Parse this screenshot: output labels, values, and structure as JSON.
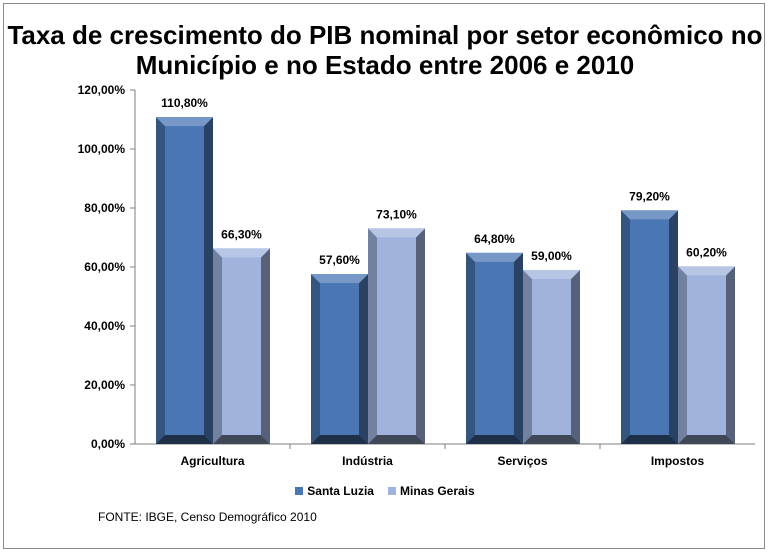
{
  "chart_data": {
    "type": "bar",
    "title": "Taxa de crescimento do PIB nominal por setor econômico no Município e no Estado entre 2006 e 2010",
    "categories": [
      "Agricultura",
      "Indústria",
      "Serviços",
      "Impostos"
    ],
    "series": [
      {
        "name": "Santa Luzia",
        "values": [
          110.8,
          57.6,
          64.8,
          79.2
        ],
        "labels": [
          "110,80%",
          "57,60%",
          "64,80%",
          "79,20%"
        ],
        "color": "#4a76b3"
      },
      {
        "name": "Minas Gerais",
        "values": [
          66.3,
          73.1,
          59.0,
          60.2
        ],
        "labels": [
          "66,30%",
          "73,10%",
          "59,00%",
          "60,20%"
        ],
        "color": "#9fb3dd"
      }
    ],
    "ylim": [
      0,
      120
    ],
    "yticks": [
      0,
      20,
      40,
      60,
      80,
      100,
      120
    ],
    "ytick_labels": [
      "0,00%",
      "20,00%",
      "40,00%",
      "60,00%",
      "80,00%",
      "100,00%",
      "120,00%"
    ],
    "legend_position": "bottom",
    "grid": false
  },
  "source": "FONTE:  IBGE, Censo Demográfico 2010"
}
